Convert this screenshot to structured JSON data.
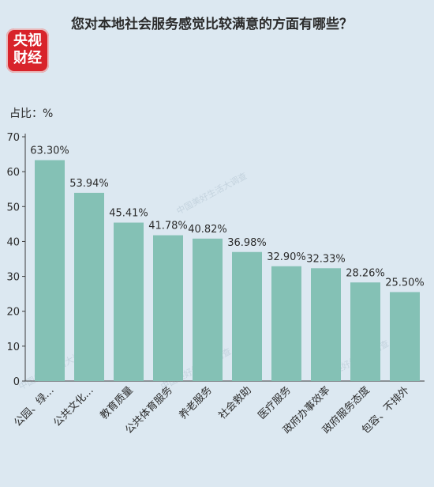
{
  "header": {
    "title": "您对本地社会服务感觉比较满意的方面有哪些？",
    "logo_top": "央视",
    "logo_bottom": "财经"
  },
  "watermark": "中国美好生活大调查",
  "chart_data": {
    "type": "bar",
    "title": "您对本地社会服务感觉比较满意的方面有哪些？",
    "ylabel": "占比：%",
    "xlabel": "",
    "ylim": [
      0,
      70
    ],
    "yticks": [
      0,
      10,
      20,
      30,
      40,
      50,
      60,
      70
    ],
    "grid": false,
    "legend": "none",
    "bar_color": "#84c1b5",
    "categories": [
      "公园、绿…",
      "公共文化…",
      "教育质量",
      "公共体育服务",
      "养老服务",
      "社会救助",
      "医疗服务",
      "政府办事效率",
      "政府服务态度",
      "包容、不排外"
    ],
    "values": [
      63.3,
      53.94,
      45.41,
      41.78,
      40.82,
      36.98,
      32.9,
      32.33,
      28.26,
      25.5
    ],
    "data_labels": [
      "63.30%",
      "53.94%",
      "45.41%",
      "41.78%",
      "40.82%",
      "36.98%",
      "32.90%",
      "32.33%",
      "28.26%",
      "25.50%"
    ]
  }
}
